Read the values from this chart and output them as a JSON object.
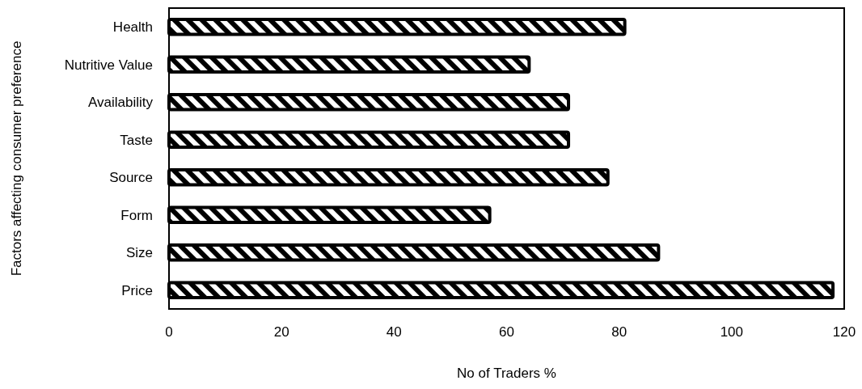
{
  "chart_data": {
    "type": "bar",
    "orientation": "horizontal",
    "xlabel": "No of Traders %",
    "ylabel": "Factors affecting consumer preference",
    "categories": [
      "Health",
      "Nutritive Value",
      "Availability",
      "Taste",
      "Source",
      "Form",
      "Size",
      "Price"
    ],
    "values": [
      81,
      64,
      71,
      71,
      78,
      57,
      87,
      118
    ],
    "color": "#000000",
    "xlim": [
      0,
      120
    ],
    "xticks": [
      0,
      20,
      40,
      60,
      80,
      100,
      120
    ],
    "grid": false
  }
}
